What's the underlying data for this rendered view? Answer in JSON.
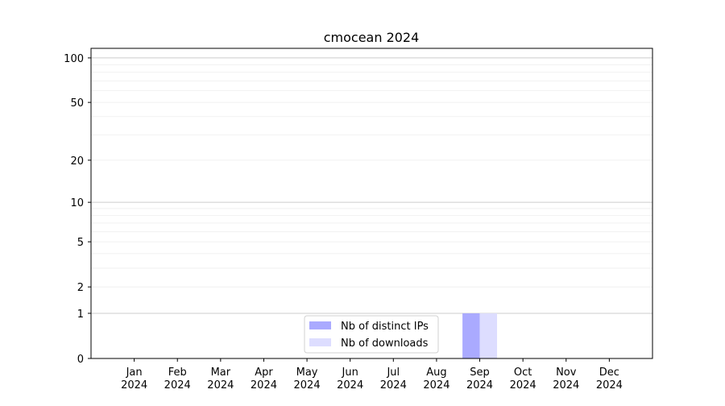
{
  "chart_data": {
    "type": "bar",
    "title": "cmocean 2024",
    "xlabel": "",
    "ylabel": "",
    "categories": [
      "Jan\n2024",
      "Feb\n2024",
      "Mar\n2024",
      "Apr\n2024",
      "May\n2024",
      "Jun\n2024",
      "Jul\n2024",
      "Aug\n2024",
      "Sep\n2024",
      "Oct\n2024",
      "Nov\n2024",
      "Dec\n2024"
    ],
    "series": [
      {
        "name": "Nb of distinct IPs",
        "color": "#aaaaff",
        "values": [
          0,
          0,
          0,
          0,
          0,
          0,
          0,
          0,
          1,
          0,
          0,
          0
        ]
      },
      {
        "name": "Nb of downloads",
        "color": "#ddddff",
        "values": [
          0,
          0,
          0,
          0,
          0,
          0,
          0,
          0,
          1,
          0,
          0,
          0
        ]
      }
    ],
    "y_scale": "log(1+y)",
    "ylim": [
      0,
      116
    ],
    "yticks": [
      0,
      1,
      2,
      5,
      10,
      20,
      50,
      100
    ],
    "grid": true,
    "legend_placement": "lower-center"
  }
}
